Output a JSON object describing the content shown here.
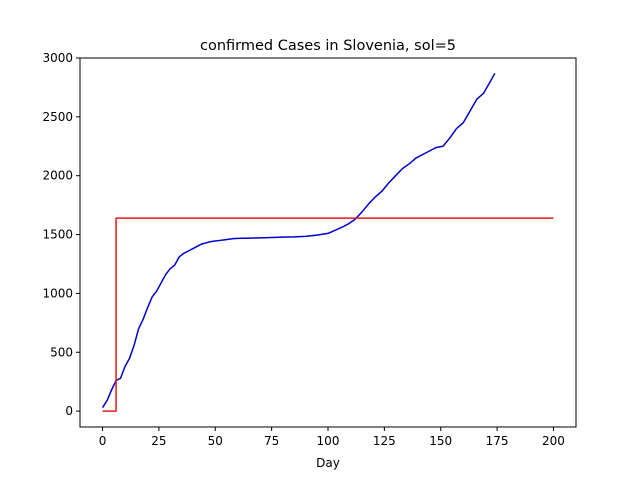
{
  "chart_data": {
    "type": "line",
    "title": "confirmed Cases in Slovenia, sol=5",
    "xlabel": "Day",
    "ylabel": "",
    "xlim": [
      -10,
      210
    ],
    "ylim": [
      -135,
      3000
    ],
    "xticks": [
      0,
      25,
      50,
      75,
      100,
      125,
      150,
      175,
      200
    ],
    "yticks": [
      0,
      500,
      1000,
      1500,
      2000,
      2500,
      3000
    ],
    "grid": false,
    "series": [
      {
        "color": "#0000cd",
        "x": [
          0,
          2,
          4,
          6,
          8,
          10,
          12,
          14,
          16,
          18,
          20,
          22,
          24,
          26,
          28,
          30,
          32,
          34,
          36,
          38,
          40,
          42,
          44,
          46,
          48,
          50,
          52,
          54,
          56,
          58,
          60,
          65,
          70,
          75,
          80,
          85,
          90,
          95,
          100,
          103,
          106,
          109,
          112,
          115,
          118,
          121,
          124,
          127,
          130,
          133,
          136,
          139,
          142,
          145,
          148,
          151,
          154,
          157,
          160,
          163,
          166,
          169,
          172,
          174
        ],
        "y": [
          30,
          90,
          180,
          260,
          280,
          380,
          450,
          560,
          700,
          780,
          880,
          970,
          1020,
          1090,
          1160,
          1210,
          1240,
          1310,
          1340,
          1360,
          1380,
          1400,
          1420,
          1430,
          1440,
          1445,
          1450,
          1455,
          1460,
          1465,
          1468,
          1470,
          1472,
          1475,
          1478,
          1480,
          1485,
          1495,
          1510,
          1535,
          1560,
          1590,
          1630,
          1690,
          1760,
          1820,
          1870,
          1940,
          2000,
          2060,
          2100,
          2150,
          2180,
          2210,
          2240,
          2250,
          2320,
          2400,
          2450,
          2550,
          2650,
          2700,
          2800,
          2870
        ]
      },
      {
        "color": "#e31a1c",
        "x": [
          0,
          6,
          6,
          200
        ],
        "y": [
          0,
          0,
          1640,
          1640
        ]
      }
    ]
  }
}
